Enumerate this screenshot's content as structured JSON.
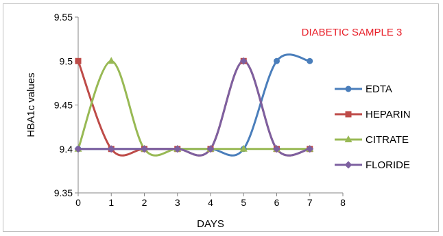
{
  "chart_data": {
    "type": "line",
    "title": "",
    "annotation": "DIABETIC SAMPLE 3",
    "annotation_color": "#e8202a",
    "xlabel": "DAYS",
    "ylabel": "HBA1c values",
    "xlim": [
      0,
      8
    ],
    "ylim": [
      9.35,
      9.55
    ],
    "x_ticks": [
      "0",
      "1",
      "2",
      "3",
      "4",
      "5",
      "6",
      "7",
      "8"
    ],
    "y_ticks": [
      "9.35",
      "9.4",
      "9.45",
      "9.5",
      "9.55"
    ],
    "grid": false,
    "legend_position": "right",
    "smooth": true,
    "x": [
      0,
      1,
      2,
      3,
      4,
      5,
      6,
      7
    ],
    "series": [
      {
        "name": "EDTA",
        "color": "#4a7ebb",
        "marker": "circle",
        "values": [
          9.4,
          9.4,
          9.4,
          9.4,
          9.4,
          9.4,
          9.5,
          9.5
        ]
      },
      {
        "name": "HEPARIN",
        "color": "#be4b48",
        "marker": "square",
        "values": [
          9.5,
          9.4,
          9.4,
          9.4,
          9.4,
          9.5,
          9.4,
          9.4
        ]
      },
      {
        "name": "CITRATE",
        "color": "#98b954",
        "marker": "triangle",
        "values": [
          9.4,
          9.5,
          9.4,
          9.4,
          9.4,
          9.4,
          9.4,
          9.4
        ]
      },
      {
        "name": "FLORIDE",
        "color": "#7d60a0",
        "marker": "diamond",
        "values": [
          9.4,
          9.4,
          9.4,
          9.4,
          9.4,
          9.5,
          9.4,
          9.4
        ]
      }
    ]
  }
}
